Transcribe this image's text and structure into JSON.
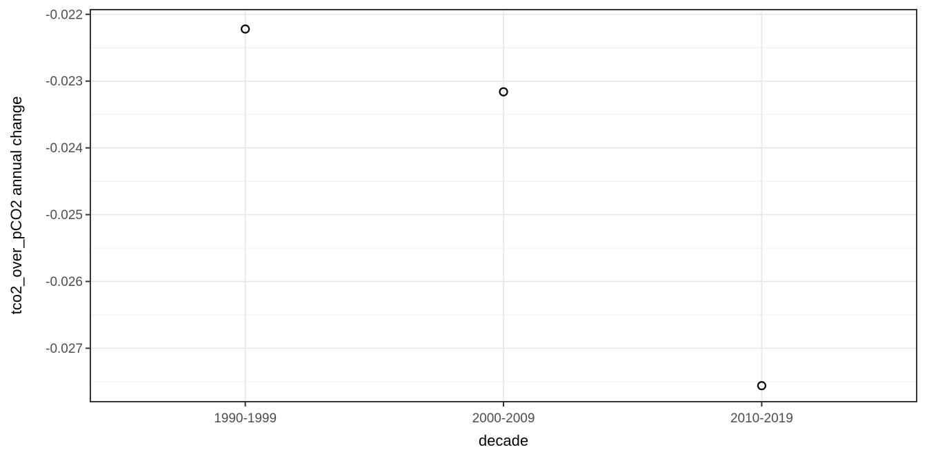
{
  "chart_data": {
    "type": "scatter",
    "title": "",
    "xlabel": "decade",
    "ylabel": "tco2_over_pCO2 annual change",
    "categories": [
      "1990-1999",
      "2000-2009",
      "2010-2019"
    ],
    "values": [
      -0.02222,
      -0.02316,
      -0.02756
    ],
    "y_tick_values": [
      -0.022,
      -0.023,
      -0.024,
      -0.025,
      -0.026,
      -0.027
    ],
    "y_tick_labels": [
      "-0.022",
      "-0.023",
      "-0.024",
      "-0.025",
      "-0.026",
      "-0.027"
    ],
    "ylim": [
      -0.0278,
      -0.02193
    ],
    "grid": {
      "major": true,
      "minor": true,
      "vertical_at_categories": true
    },
    "legend_position": "none",
    "point_style": "open-circle",
    "colors": {
      "background": "#ffffff",
      "panel_background": "#ffffff",
      "panel_border": "#333333",
      "grid_major": "#e6e6e6",
      "grid_minor": "#f1f1f1",
      "tick_mark": "#333333",
      "tick_label": "#4d4d4d",
      "axis_title": "#000000",
      "point_stroke": "#000000"
    }
  }
}
